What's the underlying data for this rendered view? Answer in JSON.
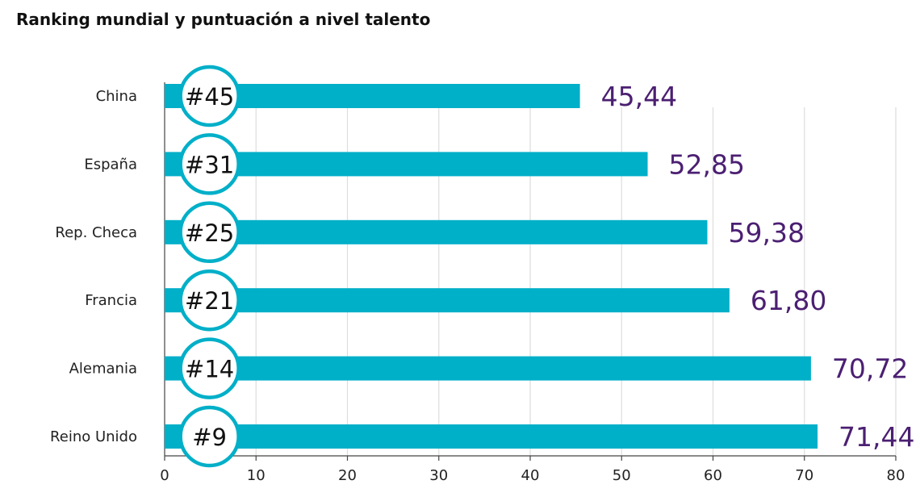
{
  "chart_data": {
    "type": "bar",
    "orientation": "horizontal",
    "title": "Ranking mundial y puntuación a nivel talento",
    "categories": [
      "China",
      "España",
      "Rep. Checa",
      "Francia",
      "Alemania",
      "Reino Unido"
    ],
    "values": [
      45.44,
      52.85,
      59.38,
      61.8,
      70.72,
      71.44
    ],
    "value_labels": [
      "45,44",
      "52,85",
      "59,38",
      "61,80",
      "70,72",
      "71,44"
    ],
    "rank_labels": [
      "#45",
      "#31",
      "#25",
      "#21",
      "#14",
      "#9"
    ],
    "rank_marker_value": 5,
    "xlim": [
      0,
      80
    ],
    "x_ticks": [
      0,
      10,
      20,
      30,
      40,
      50,
      60,
      70,
      80
    ],
    "grid": true,
    "colors": {
      "bar": "#00AFC8",
      "value_text": "#4B1F72",
      "grid": "#dddddd",
      "axis": "#444444",
      "circle_fill": "#ffffff",
      "circle_stroke": "#00AFC8"
    }
  }
}
